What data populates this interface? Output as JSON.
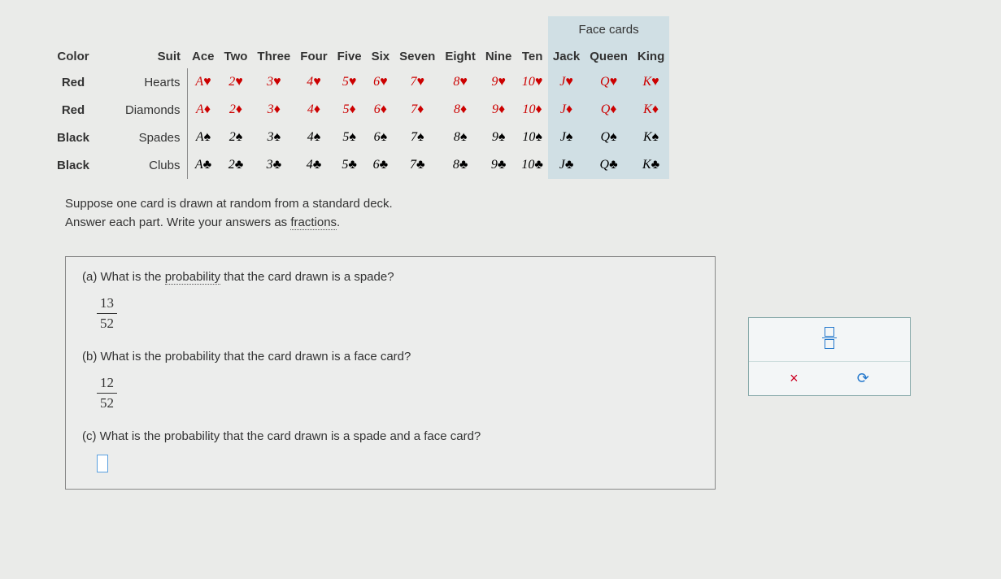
{
  "face_cards_label": "Face cards",
  "columns": [
    "Color",
    "Suit",
    "Ace",
    "Two",
    "Three",
    "Four",
    "Five",
    "Six",
    "Seven",
    "Eight",
    "Nine",
    "Ten",
    "Jack",
    "Queen",
    "King"
  ],
  "ranks": [
    "A",
    "2",
    "3",
    "4",
    "5",
    "6",
    "7",
    "8",
    "9",
    "10",
    "J",
    "Q",
    "K"
  ],
  "suits": [
    {
      "color": "Red",
      "name": "Hearts",
      "symbol": "♥",
      "css": "red"
    },
    {
      "color": "Red",
      "name": "Diamonds",
      "symbol": "♦",
      "css": "red"
    },
    {
      "color": "Black",
      "name": "Spades",
      "symbol": "♠",
      "css": "black"
    },
    {
      "color": "Black",
      "name": "Clubs",
      "symbol": "♣",
      "css": "black"
    }
  ],
  "face_highlight_cols": [
    10,
    11,
    12
  ],
  "instructions": {
    "line1": "Suppose one card is drawn at random from a standard deck.",
    "line2_a": "Answer each part. Write your answers as ",
    "line2_link": "fractions",
    "line2_b": "."
  },
  "parts": {
    "a": {
      "label": "(a) What is the ",
      "link": "probability",
      "rest": " that the card drawn is a spade?",
      "num": "13",
      "den": "52"
    },
    "b": {
      "label": "(b) What is the probability that the card drawn is a face card?",
      "num": "12",
      "den": "52"
    },
    "c": {
      "label": "(c) What is the probability that the card drawn is a spade and a face card?"
    }
  },
  "tools": {
    "x": "×",
    "reset": "⟳"
  }
}
